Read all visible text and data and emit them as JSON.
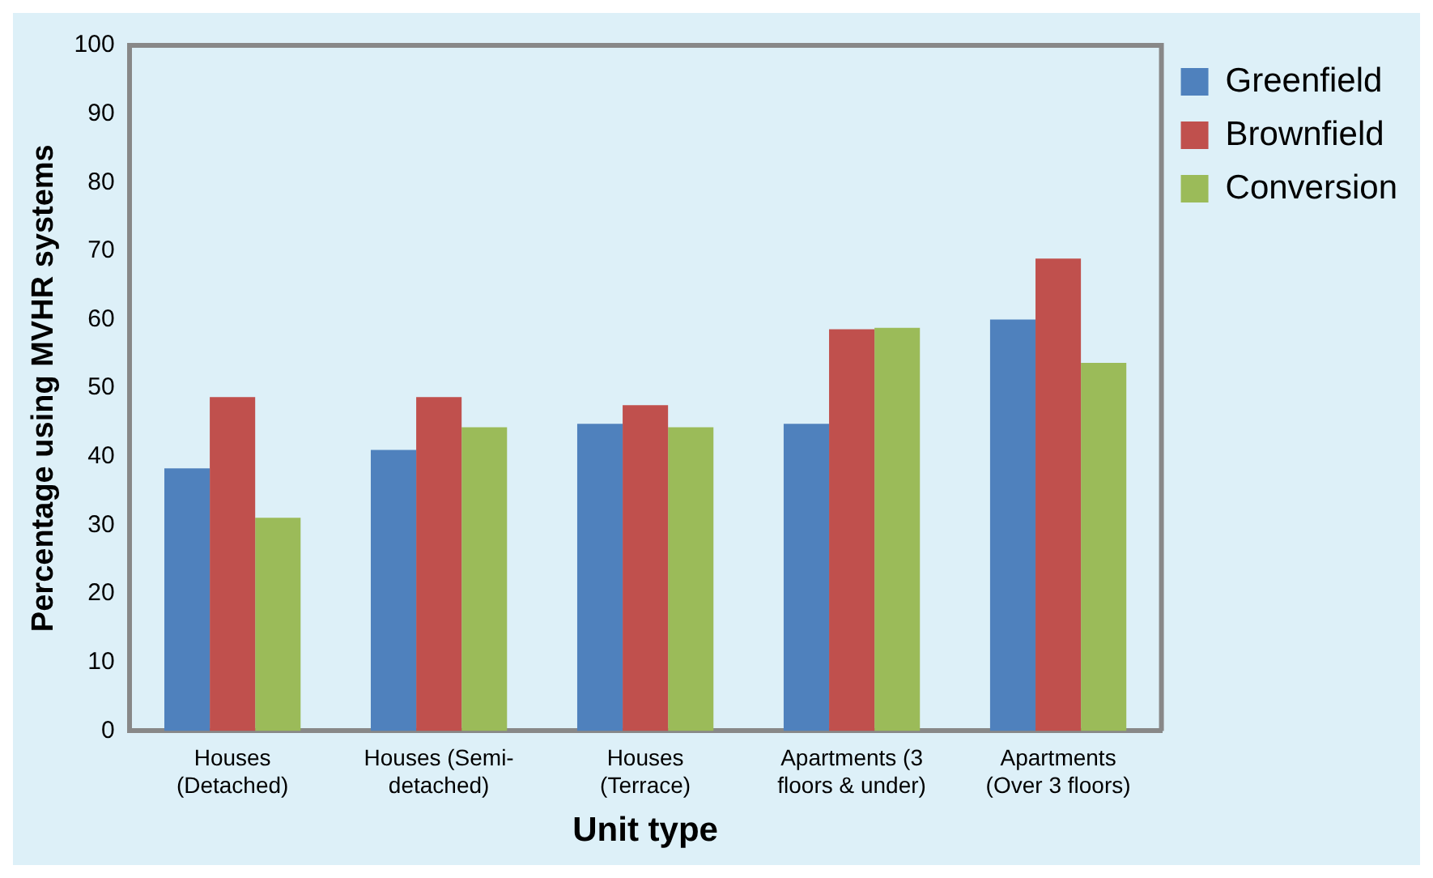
{
  "chart_data": {
    "type": "bar",
    "xlabel": "Unit type",
    "ylabel": "Percentage using MVHR systems",
    "categories": [
      "Houses (Detached)",
      "Houses (Semi-detached)",
      "Houses (Terrace)",
      "Apartments (3 floors & under)",
      "Apartments (Over 3 floors)"
    ],
    "series": [
      {
        "name": "Greenfield",
        "color": "#4f81bd",
        "values": [
          38.3,
          41,
          44.8,
          44.8,
          60
        ]
      },
      {
        "name": "Brownfield",
        "color": "#c0504d",
        "values": [
          48.7,
          48.7,
          47.5,
          58.6,
          68.9
        ]
      },
      {
        "name": "Conversion",
        "color": "#9bbb59",
        "values": [
          31.1,
          44.3,
          44.3,
          58.8,
          53.7
        ]
      }
    ],
    "ylim": [
      0,
      100
    ],
    "yticks": [
      0,
      10,
      20,
      30,
      40,
      50,
      60,
      70,
      80,
      90,
      100
    ],
    "grid": false,
    "legend": "top right"
  }
}
